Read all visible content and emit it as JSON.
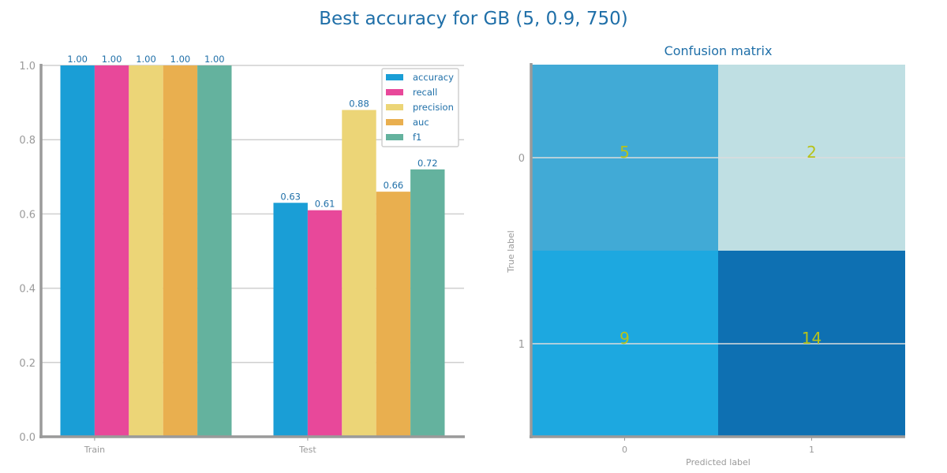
{
  "suptitle": "Best accuracy for GB (5, 0.9, 750)",
  "chart_data": [
    {
      "type": "bar",
      "categories": [
        "Train",
        "Test"
      ],
      "series": [
        {
          "name": "accuracy",
          "values": [
            1.0,
            0.63
          ],
          "labels": [
            "1.00",
            "0.63"
          ],
          "color": "#1a9ed6"
        },
        {
          "name": "recall",
          "values": [
            1.0,
            0.61
          ],
          "labels": [
            "1.00",
            "0.61"
          ],
          "color": "#e8489a"
        },
        {
          "name": "precision",
          "values": [
            1.0,
            0.88
          ],
          "labels": [
            "1.00",
            "0.88"
          ],
          "color": "#ecd577"
        },
        {
          "name": "auc",
          "values": [
            1.0,
            0.66
          ],
          "labels": [
            "1.00",
            "0.66"
          ],
          "color": "#e9af4f"
        },
        {
          "name": "f1",
          "values": [
            1.0,
            0.72
          ],
          "labels": [
            "1.00",
            "0.72"
          ],
          "color": "#64b29e"
        }
      ],
      "ylim": [
        0,
        1
      ],
      "yticks": [
        "0.0",
        "0.2",
        "0.4",
        "0.6",
        "0.8",
        "1.0"
      ],
      "grid": true,
      "legend": "top-right"
    },
    {
      "type": "heatmap",
      "title": "Confusion matrix",
      "xlabel": "Predicted label",
      "ylabel": "True label",
      "xticks": [
        "0",
        "1"
      ],
      "yticks": [
        "0",
        "1"
      ],
      "values": [
        [
          5,
          2
        ],
        [
          9,
          14
        ]
      ],
      "colors": [
        [
          "#41aad6",
          "#bfdfe3"
        ],
        [
          "#1da8e0",
          "#0e70b2"
        ]
      ]
    }
  ]
}
